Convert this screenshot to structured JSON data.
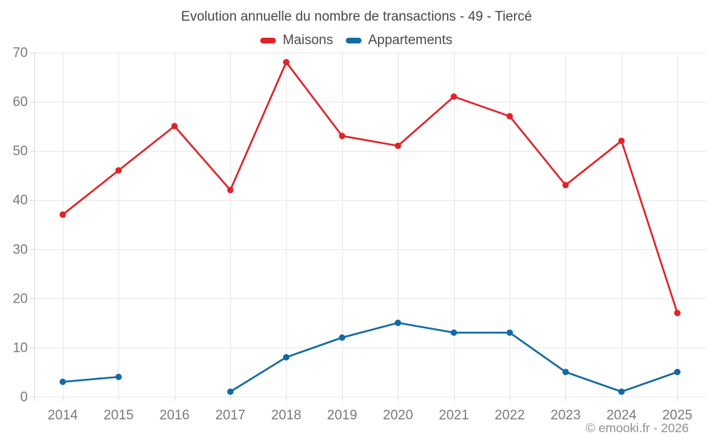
{
  "header": {
    "title": "Evolution annuelle du nombre de transactions - 49 - Tiercé"
  },
  "footer": {
    "credit": "© emooki.fr - 2026"
  },
  "colors": {
    "maisons": "#df2328",
    "appartements": "#1269a5",
    "grid": "#e7e7e7",
    "axis": "#d9d9d9",
    "tick_label": "#7a7a7a",
    "title_text": "#464646",
    "legend_text": "#4a4a4a",
    "credit_text": "#8f8f8f",
    "background": "#ffffff"
  },
  "chart_data": {
    "type": "line",
    "title": "Evolution annuelle du nombre de transactions - 49 - Tiercé",
    "xlabel": "",
    "ylabel": "",
    "categories": [
      "2014",
      "2015",
      "2016",
      "2017",
      "2018",
      "2019",
      "2020",
      "2021",
      "2022",
      "2023",
      "2024",
      "2025"
    ],
    "series": [
      {
        "name": "Maisons",
        "color": "#df2328",
        "values": [
          37,
          46,
          55,
          42,
          68,
          53,
          51,
          61,
          57,
          43,
          52,
          17
        ]
      },
      {
        "name": "Appartements",
        "color": "#1269a5",
        "values": [
          3,
          4,
          null,
          1,
          8,
          12,
          15,
          13,
          13,
          5,
          1,
          5
        ]
      }
    ],
    "ylim": [
      0,
      70
    ],
    "ytick_step": 10,
    "yticks": [
      0,
      10,
      20,
      30,
      40,
      50,
      60,
      70
    ],
    "grid": true,
    "legend_position": "top"
  }
}
